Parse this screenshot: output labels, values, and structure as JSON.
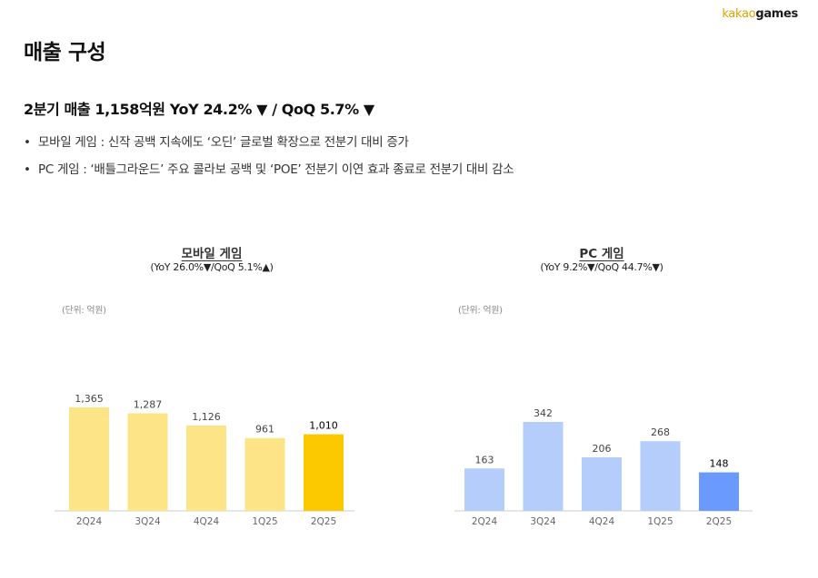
{
  "brand": {
    "part1": "kakao",
    "part2": "games"
  },
  "page_title": "매출 구성",
  "summary": "2분기 매출 1,158억원 YoY 24.2% ▼ / QoQ 5.7% ▼",
  "bullets": [
    "모바일 게임 : 신작 공백 지속에도 ‘오딘’ 글로벌 확장으로 전분기 대비 증가",
    "PC 게임 : ‘배틀그라운드’ 주요 콜라보 공백 및 ‘POE’ 전분기 이연 효과 종료로 전분기 대비 감소"
  ],
  "colors": {
    "mobile_bar": "#fde486",
    "mobile_highlight": "#fcc800",
    "pc_bar": "#b5cdfb",
    "pc_highlight": "#6a9afd",
    "axis": "#cccccc"
  },
  "chart_data": [
    {
      "type": "bar",
      "title": "모바일 게임",
      "subtitle": "(YoY 26.0%▼/QoQ 5.1%▲)",
      "unit_label": "(단위: 억원)",
      "categories": [
        "2Q24",
        "3Q24",
        "4Q24",
        "1Q25",
        "2Q25"
      ],
      "values": [
        1365,
        1287,
        1126,
        961,
        1010
      ],
      "value_labels": [
        "1,365",
        "1,287",
        "1,126",
        "961",
        "1,010"
      ],
      "highlight_index": 4,
      "ylim": [
        0,
        1365
      ]
    },
    {
      "type": "bar",
      "title": "PC 게임",
      "subtitle": "(YoY 9.2%▼/QoQ 44.7%▼)",
      "unit_label": "(단위: 억원)",
      "categories": [
        "2Q24",
        "3Q24",
        "4Q24",
        "1Q25",
        "2Q25"
      ],
      "values": [
        163,
        342,
        206,
        268,
        148
      ],
      "value_labels": [
        "163",
        "342",
        "206",
        "268",
        "148"
      ],
      "highlight_index": 4,
      "ylim": [
        0,
        342
      ]
    }
  ]
}
